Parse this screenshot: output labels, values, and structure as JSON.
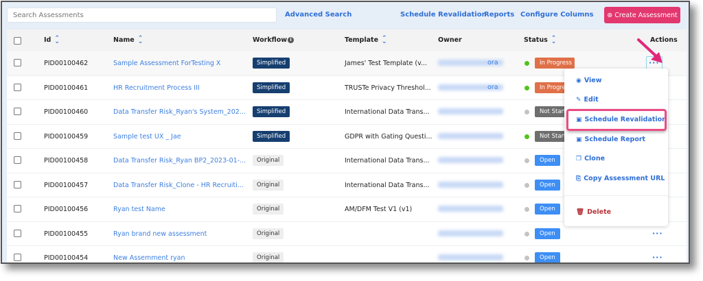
{
  "toolbar": {
    "search_placeholder": "Search Assessments",
    "advanced_search": "Advanced Search",
    "schedule_revalidation": "Schedule Revalidation",
    "reports": "Reports",
    "configure_columns": "Configure Columns",
    "create": "Create Assessment"
  },
  "columns": {
    "id": "Id",
    "name": "Name",
    "workflow": "Workflow",
    "template": "Template",
    "owner": "Owner",
    "status": "Status",
    "actions": "Actions"
  },
  "colors": {
    "accent": "#2f6fd6",
    "create": "#e2376f",
    "simplified": "#163f70",
    "in_progress": "#e07048",
    "not_started": "#6e6e6e",
    "open": "#3d8ef5",
    "dot_green": "#52c41a",
    "dot_grey": "#c4c4c4",
    "highlight": "#ec4b85"
  },
  "rows": [
    {
      "id": "PID00100462",
      "name": "Sample Assessment ForTesting X",
      "workflow": "Simplified",
      "template": "James' Test Template (v...",
      "owner_tail": "ora",
      "status": "In Progress",
      "dot": "green"
    },
    {
      "id": "PID00100461",
      "name": "HR Recruitment Process III",
      "workflow": "Simplified",
      "template": "TRUSTe Privacy Threshol...",
      "owner_tail": "ora",
      "status": "In Progress",
      "dot": "green"
    },
    {
      "id": "PID00100460",
      "name": "Data Transfer Risk_Ryan's System_202...",
      "workflow": "Simplified",
      "template": "International Data Trans...",
      "owner_tail": "",
      "status": "Not Started",
      "dot": "grey"
    },
    {
      "id": "PID00100459",
      "name": "Sample test UX _ Jae",
      "workflow": "Simplified",
      "template": "GDPR with Gating Questi...",
      "owner_tail": "",
      "status": "Not Started",
      "dot": "green"
    },
    {
      "id": "PID00100458",
      "name": "Data Transfer Risk_Ryan BP2_2023-01-...",
      "workflow": "Original",
      "template": "International Data Trans...",
      "owner_tail": "",
      "status": "Open",
      "dot": "grey"
    },
    {
      "id": "PID00100457",
      "name": "Data Transfer Risk_Clone - HR Recruiti...",
      "workflow": "Original",
      "template": "International Data Trans...",
      "owner_tail": "",
      "status": "Open",
      "dot": "grey"
    },
    {
      "id": "PID00100456",
      "name": "Ryan test Name",
      "workflow": "Original",
      "template": "AM/DFM Test V1 (v1)",
      "owner_tail": "",
      "status": "Open",
      "dot": "grey"
    },
    {
      "id": "PID00100455",
      "name": "Ryan brand new assessment",
      "workflow": "Original",
      "template": "",
      "owner_tail": "",
      "status": "Open",
      "dot": "grey"
    },
    {
      "id": "PID00100454",
      "name": "New Assemment ryan",
      "workflow": "Original",
      "template": "",
      "owner_tail": "",
      "status": "Open",
      "dot": "grey"
    }
  ],
  "menu": {
    "items": [
      {
        "label": "View",
        "icon": "eye-icon"
      },
      {
        "label": "Edit",
        "icon": "pencil-icon"
      },
      {
        "label": "Schedule Revalidation",
        "icon": "calendar-icon"
      },
      {
        "label": "Schedule Report",
        "icon": "calendar-icon"
      },
      {
        "label": "Clone",
        "icon": "clone-icon"
      },
      {
        "label": "Copy Assessment URL",
        "icon": "copy-icon"
      }
    ],
    "delete": "Delete"
  }
}
